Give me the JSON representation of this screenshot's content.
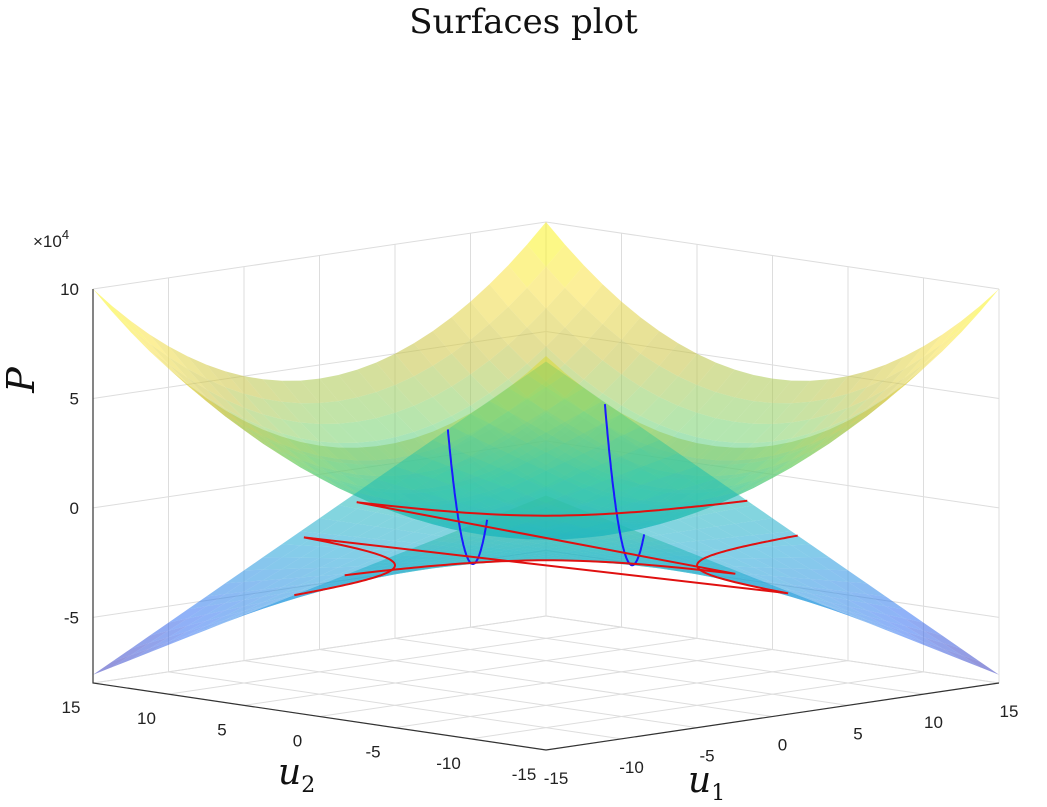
{
  "chart_data": {
    "type": "surface",
    "title": "Surfaces plot",
    "xlabel": "u_1",
    "ylabel": "u_2",
    "zlabel": "P",
    "z_exponent_label": "×10",
    "z_exponent": "4",
    "xlim": [
      -15,
      15
    ],
    "ylim": [
      -15,
      15
    ],
    "zlim": [
      -80000,
      100000
    ],
    "x_ticks": [
      -15,
      -10,
      -5,
      0,
      5,
      10,
      15
    ],
    "y_ticks": [
      -15,
      -10,
      -5,
      0,
      5,
      10,
      15
    ],
    "z_ticks": [
      -5,
      0,
      5,
      10
    ],
    "grid": true,
    "colormap": "parula",
    "series": [
      {
        "kind": "surface",
        "formula": "P = 250*(u1^2 + u2^2) - 12500"
      },
      {
        "kind": "surface",
        "formula": "P = 250*u1*u2 - 20000"
      },
      {
        "kind": "curve",
        "color": "#1a1aff",
        "formula": "u1 = 5 + 0.9*u2"
      },
      {
        "kind": "curve",
        "color": "#1a1aff",
        "formula": "u1 = 0.9*u2 - 5"
      },
      {
        "kind": "curve",
        "color": "#e01010",
        "formula": "u1*u2 = 25"
      },
      {
        "kind": "curve",
        "color": "#e01010",
        "formula": "u1*u2 = -25"
      }
    ]
  }
}
